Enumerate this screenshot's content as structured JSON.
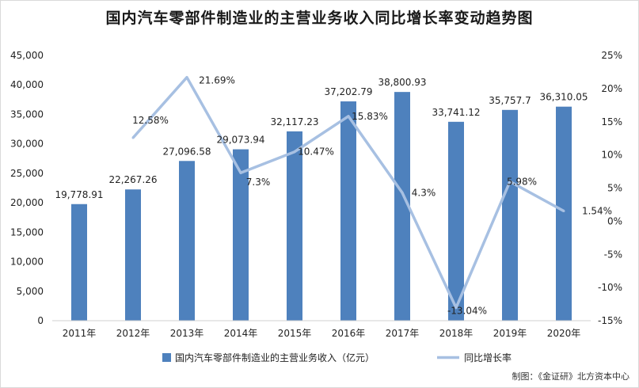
{
  "chart_data": {
    "type": "bar",
    "title": "国内汽车零部件制造业的主营业务收入同比增长率变动趋势图",
    "categories": [
      "2011年",
      "2012年",
      "2013年",
      "2014年",
      "2015年",
      "2016年",
      "2017年",
      "2018年",
      "2019年",
      "2020年"
    ],
    "series": [
      {
        "name": "国内汽车零部件制造业的主营业务收入（亿元）",
        "type": "bar",
        "axis": "left",
        "color": "#4e81bd",
        "values": [
          19778.91,
          22267.26,
          27096.58,
          29073.94,
          32117.23,
          37202.79,
          38800.93,
          33741.12,
          35757.7,
          36310.05
        ],
        "labels": [
          "19,778.91",
          "22,267.26",
          "27,096.58",
          "29,073.94",
          "32,117.23",
          "37,202.79",
          "38,800.93",
          "33,741.12",
          "35,757.7",
          "36,310.05"
        ]
      },
      {
        "name": "同比增长率",
        "type": "line",
        "axis": "right",
        "color": "#a7c0e2",
        "values": [
          null,
          12.58,
          21.69,
          7.3,
          10.47,
          15.83,
          4.3,
          -13.04,
          5.98,
          1.54
        ],
        "labels": [
          "",
          "12.58%",
          "21.69%",
          "7.3%",
          "10.47%",
          "15.83%",
          "4.3%",
          "-13.04%",
          "5.98%",
          "1.54%"
        ]
      }
    ],
    "y_left": {
      "ylim": [
        0,
        45000
      ],
      "ticks": [
        "0",
        "5,000",
        "10,000",
        "15,000",
        "20,000",
        "25,000",
        "30,000",
        "35,000",
        "40,000",
        "45,000"
      ]
    },
    "y_right": {
      "ylim": [
        -15,
        25
      ],
      "ticks": [
        "-15%",
        "-10%",
        "-5%",
        "0%",
        "5%",
        "10%",
        "15%",
        "20%",
        "25%"
      ]
    },
    "grid": false,
    "legend": "bottom"
  },
  "credit": "制图：《金证研》北方资本中心"
}
